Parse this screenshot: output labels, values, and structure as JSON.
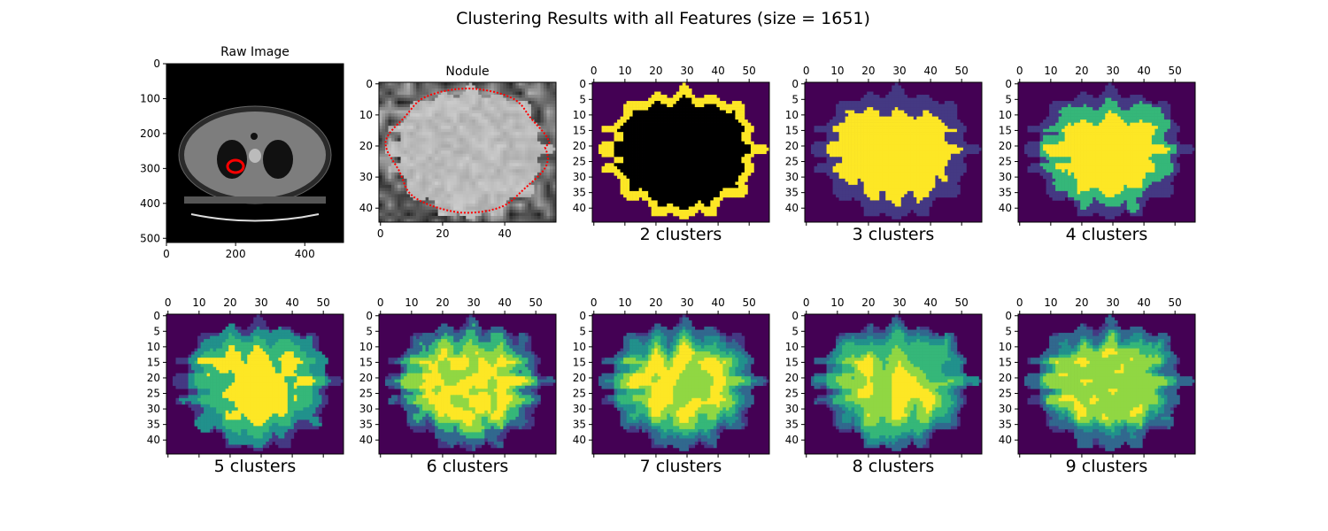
{
  "title": "Clustering Results with all Features (size = 1651)",
  "colors": {
    "background_cluster": "#440154",
    "viridis": [
      "#440154",
      "#443983",
      "#31688e",
      "#21918c",
      "#35b779",
      "#90d743",
      "#fde725"
    ],
    "contour": "#ff0000"
  },
  "panels": {
    "raw": {
      "title": "Raw Image",
      "xticks": [
        "0",
        "200",
        "400"
      ],
      "yticks": [
        "0",
        "100",
        "200",
        "300",
        "400",
        "500"
      ]
    },
    "nodule": {
      "title": "Nodule",
      "xticks": [
        "0",
        "20",
        "40"
      ],
      "yticks": [
        "0",
        "10",
        "20",
        "30",
        "40"
      ]
    },
    "cluster_axes": {
      "xticks": [
        "0",
        "10",
        "20",
        "30",
        "40",
        "50"
      ],
      "yticks": [
        "0",
        "5",
        "10",
        "15",
        "20",
        "25",
        "30",
        "35",
        "40"
      ]
    },
    "cluster_maps": [
      {
        "label": "2 clusters",
        "k": 2
      },
      {
        "label": "3 clusters",
        "k": 3
      },
      {
        "label": "4 clusters",
        "k": 4
      },
      {
        "label": "5 clusters",
        "k": 5
      },
      {
        "label": "6 clusters",
        "k": 6
      },
      {
        "label": "7 clusters",
        "k": 7
      },
      {
        "label": "8 clusters",
        "k": 8
      },
      {
        "label": "9 clusters",
        "k": 9
      }
    ]
  }
}
